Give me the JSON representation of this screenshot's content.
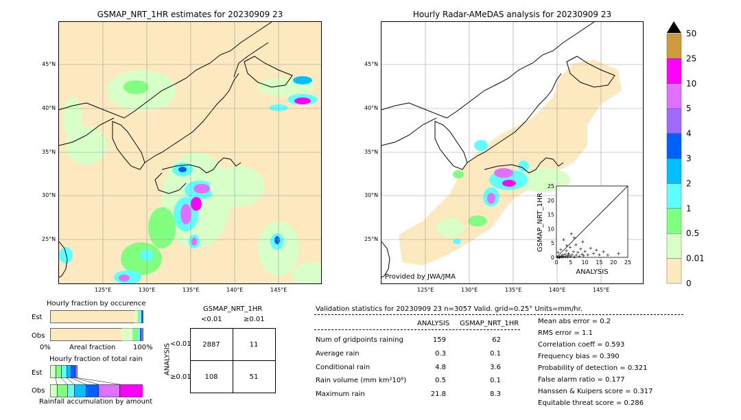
{
  "map_left": {
    "title": "GSMAP_NRT_1HR estimates for 20230909 23",
    "lat_labels": [
      "45°N",
      "40°N",
      "35°N",
      "30°N",
      "25°N"
    ],
    "lon_labels": [
      "125°E",
      "130°E",
      "135°E",
      "140°E",
      "145°E"
    ]
  },
  "map_right": {
    "title": "Hourly Radar-AMeDAS analysis for 20230909 23",
    "lat_labels": [
      "45°N",
      "40°N",
      "35°N",
      "30°N",
      "25°N"
    ],
    "lon_labels": [
      "125°E",
      "130°E",
      "135°E",
      "140°E",
      "145°E"
    ],
    "credit": "Provided by JWA/JMA"
  },
  "colorbar": {
    "labels": [
      "50",
      "25",
      "10",
      "5",
      "4",
      "3",
      "2",
      "1",
      "0.5",
      "0.01",
      "0"
    ],
    "colors": [
      "#cd9b3c",
      "#ff00ff",
      "#e070ff",
      "#9e6bff",
      "#0060ff",
      "#00c0ff",
      "#60ffff",
      "#80ff80",
      "#d8ffc8",
      "#fde9bf"
    ],
    "over_color": "#000000"
  },
  "chart_data": [
    {
      "type": "scatter",
      "xlabel": "ANALYSIS",
      "ylabel": "GSMAP_NRT_1HR",
      "xlim": [
        0,
        25
      ],
      "ylim": [
        0,
        25
      ],
      "x_ticks": [
        "0",
        "5",
        "10",
        "15",
        "20",
        "25"
      ],
      "y_ticks": [
        "0",
        "5",
        "10",
        "15",
        "20",
        "25"
      ],
      "points": [
        [
          0.3,
          0.1
        ],
        [
          0.5,
          0.2
        ],
        [
          0.8,
          0.0
        ],
        [
          1.0,
          0.3
        ],
        [
          1.2,
          0.1
        ],
        [
          1.5,
          0.4
        ],
        [
          1.8,
          0.2
        ],
        [
          2.0,
          0.8
        ],
        [
          2.3,
          0.1
        ],
        [
          2.6,
          0.5
        ],
        [
          3.0,
          1.2
        ],
        [
          3.2,
          0.3
        ],
        [
          3.5,
          2.4
        ],
        [
          3.8,
          0.6
        ],
        [
          4.0,
          0.2
        ],
        [
          4.2,
          1.5
        ],
        [
          4.5,
          0.9
        ],
        [
          4.8,
          3.6
        ],
        [
          5.0,
          0.4
        ],
        [
          5.5,
          1.0
        ],
        [
          6.0,
          2.0
        ],
        [
          6.3,
          0.3
        ],
        [
          6.8,
          4.5
        ],
        [
          7.0,
          0.8
        ],
        [
          7.5,
          1.8
        ],
        [
          8.0,
          0.5
        ],
        [
          8.5,
          3.0
        ],
        [
          9.0,
          1.2
        ],
        [
          9.5,
          0.6
        ],
        [
          10.0,
          2.2
        ],
        [
          11.0,
          1.0
        ],
        [
          12.0,
          3.2
        ],
        [
          13.0,
          1.4
        ],
        [
          14.0,
          2.6
        ],
        [
          15.0,
          1.0
        ],
        [
          16.5,
          2.0
        ],
        [
          18.0,
          0.8
        ],
        [
          21.8,
          1.5
        ],
        [
          2.5,
          6.2
        ],
        [
          5.2,
          8.3
        ],
        [
          9.2,
          5.5
        ],
        [
          6.2,
          7.0
        ],
        [
          1.5,
          2.8
        ],
        [
          0.6,
          1.8
        ],
        [
          3.6,
          4.2
        ]
      ]
    },
    {
      "type": "bar",
      "title": "Hourly fraction by occurence",
      "xlabel": "Areal fraction",
      "categories": [
        "Est",
        "Obs"
      ],
      "x_ticks": [
        "0%",
        "100%"
      ]
    },
    {
      "type": "bar",
      "title": "Hourly fraction of total rain",
      "xlabel": "Rainfall accumulation by amount",
      "categories": [
        "Est",
        "Obs"
      ]
    }
  ],
  "contingency": {
    "title": "GSMAP_NRT_1HR",
    "col_labels": [
      "<0.01",
      "≥0.01"
    ],
    "row_axis": "ANALYSIS",
    "row_labels": [
      "<0.01",
      "≥0.01"
    ],
    "cells": [
      [
        "2887",
        "11"
      ],
      [
        "108",
        "51"
      ]
    ]
  },
  "validation": {
    "header": "Validation statistics for 20230909 23  n=3057 Valid. grid=0.25° Units=mm/hr.",
    "col1": "ANALYSIS",
    "col2": "GSMAP_NRT_1HR",
    "rows": [
      {
        "label": "Num of gridpoints raining",
        "a": "159",
        "g": "62"
      },
      {
        "label": "Average rain",
        "a": "0.3",
        "g": "0.1"
      },
      {
        "label": "Conditional rain",
        "a": "4.8",
        "g": "3.6"
      },
      {
        "label": "Rain volume (mm km²10⁶)",
        "a": "0.5",
        "g": "0.1"
      },
      {
        "label": "Maximum rain",
        "a": "21.8",
        "g": "8.3"
      }
    ],
    "scores": [
      "Mean abs error =    0.2",
      "RMS error =    1.1",
      "Correlation coeff =  0.593",
      "Frequency bias =  0.390",
      "Probability of detection =  0.321",
      "False alarm ratio =  0.177",
      "Hanssen & Kuipers score =  0.317",
      "Equitable threat score =  0.286"
    ]
  }
}
